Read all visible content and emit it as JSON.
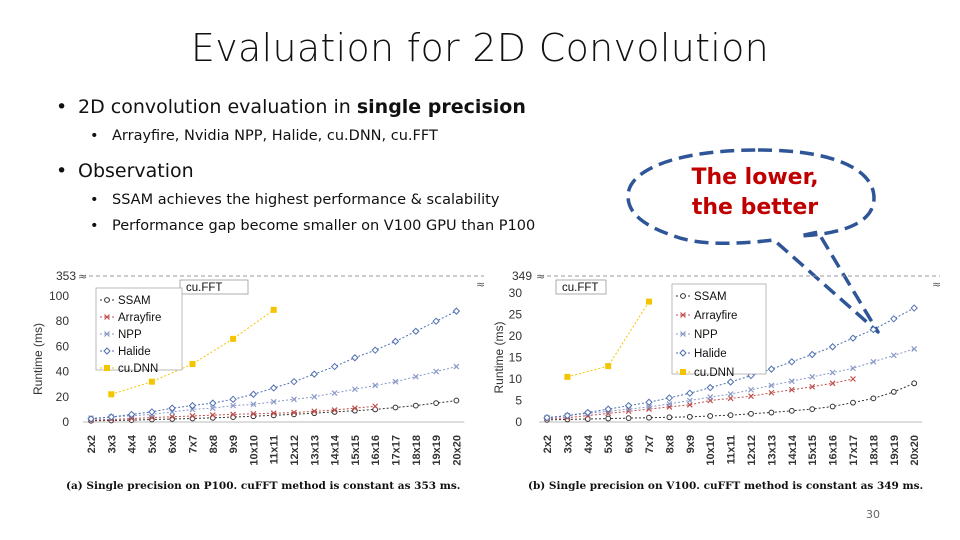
{
  "slide": {
    "title": "Evaluation for 2D Convolution",
    "bullet1_text": "2D convolution evaluation in ",
    "bullet1_bold": "single precision",
    "sub1": "Arrayfire, Nvidia NPP, Halide, cu.DNN, cu.FFT",
    "bullet2": "Observation",
    "sub2": "SSAM achieves the highest performance & scalability",
    "sub3": "Performance gap become smaller on V100 GPU than P100",
    "callout_line1": "The lower,",
    "callout_line2": "the better",
    "page_number": "30",
    "bullet_glyph": "•"
  },
  "colors": {
    "callout_border": "#2e5597",
    "callout_text": "#c00000",
    "ssam": "#333333",
    "arrayfire": "#c0504d",
    "npp": "#8a9ac8",
    "halide": "#4f6fb0",
    "cudnn": "#f5c400",
    "cufft_line": "#999999"
  },
  "chart_data": [
    {
      "type": "line",
      "caption": "(a) Single precision on P100. cuFFT method is constant as 353 ms.",
      "ylabel": "Runtime (ms)",
      "ylim": [
        0,
        100
      ],
      "yticks": [
        0,
        20,
        40,
        60,
        80,
        100
      ],
      "break_label": "353",
      "break_symbol": "≈",
      "categories": [
        "2x2",
        "3x3",
        "4x4",
        "5x5",
        "6x6",
        "7x7",
        "8x8",
        "9x9",
        "10x10",
        "11x11",
        "12x12",
        "13x13",
        "14x14",
        "15x15",
        "16x16",
        "17x17",
        "18x18",
        "19x19",
        "20x20"
      ],
      "reference_line": {
        "name": "cu.FFT",
        "value": 353
      },
      "legend_position": "upper-left",
      "series": [
        {
          "name": "SSAM",
          "key": "ssam",
          "marker": "circle",
          "values": [
            1,
            1.2,
            1.5,
            2,
            2.4,
            2.8,
            3.3,
            3.9,
            4.6,
            5.3,
            6.1,
            7,
            8,
            9,
            10,
            11.5,
            13,
            15,
            17
          ]
        },
        {
          "name": "Arrayfire",
          "key": "arrayfire",
          "marker": "x",
          "values": [
            1.5,
            2,
            2.8,
            3.5,
            4.2,
            4.8,
            5.5,
            6,
            6.5,
            7,
            7.5,
            8.5,
            9.5,
            11,
            12.5,
            null,
            null,
            null,
            null
          ]
        },
        {
          "name": "NPP",
          "key": "npp",
          "marker": "x",
          "values": [
            3,
            4,
            5,
            6,
            8,
            10,
            11,
            13,
            14,
            16,
            18,
            20,
            23,
            26,
            29,
            32,
            36,
            40,
            44
          ]
        },
        {
          "name": "Halide",
          "key": "halide",
          "marker": "diamond",
          "values": [
            2.5,
            4,
            6,
            8,
            11,
            13,
            15,
            18,
            22,
            27,
            32,
            38,
            44,
            51,
            57,
            64,
            72,
            80,
            88
          ]
        },
        {
          "name": "cu.DNN",
          "key": "cudnn",
          "marker": "square",
          "values": [
            null,
            22,
            null,
            32,
            null,
            46,
            null,
            66,
            null,
            89,
            null,
            null,
            null,
            null,
            null,
            null,
            null,
            null,
            null
          ]
        }
      ]
    },
    {
      "type": "line",
      "caption": "(b) Single precision on V100. cuFFT method is constant as 349 ms.",
      "ylabel": "Runtime (ms)",
      "ylim": [
        0,
        30
      ],
      "yticks": [
        0,
        5,
        10,
        15,
        20,
        25,
        30
      ],
      "break_label": "349",
      "break_symbol": "≈",
      "categories": [
        "2x2",
        "3x3",
        "4x4",
        "5x5",
        "6x6",
        "7x7",
        "8x8",
        "9x9",
        "10x10",
        "11x11",
        "12x12",
        "13x13",
        "14x14",
        "15x15",
        "16x16",
        "17x17",
        "18x18",
        "19x19",
        "20x20"
      ],
      "reference_line": {
        "name": "cu.FFT",
        "value": 349
      },
      "legend_position": "upper-right",
      "series": [
        {
          "name": "SSAM",
          "key": "ssam",
          "marker": "circle",
          "values": [
            0.5,
            0.6,
            0.7,
            0.8,
            0.9,
            1,
            1.1,
            1.2,
            1.4,
            1.6,
            1.9,
            2.2,
            2.6,
            3,
            3.6,
            4.5,
            5.5,
            7,
            9
          ]
        },
        {
          "name": "Arrayfire",
          "key": "arrayfire",
          "marker": "x",
          "values": [
            0.8,
            1,
            1.5,
            2,
            2.5,
            3,
            3.5,
            4,
            5,
            5.5,
            6,
            6.8,
            7.5,
            8.2,
            9,
            10,
            null,
            null,
            null
          ]
        },
        {
          "name": "NPP",
          "key": "npp",
          "marker": "x",
          "values": [
            1,
            1.5,
            2,
            2.5,
            3,
            3.5,
            4.2,
            5,
            5.8,
            6.5,
            7.5,
            8.5,
            9.5,
            10.5,
            11.5,
            12.5,
            14,
            15.5,
            17
          ]
        },
        {
          "name": "Halide",
          "key": "halide",
          "marker": "diamond",
          "values": [
            1,
            1.5,
            2.2,
            3,
            3.8,
            4.6,
            5.6,
            6.7,
            8,
            9.3,
            10.8,
            12.3,
            14,
            15.7,
            17.5,
            19.5,
            21.5,
            24,
            26.5
          ]
        },
        {
          "name": "cu.DNN",
          "key": "cudnn",
          "marker": "square",
          "values": [
            null,
            10.5,
            null,
            13,
            null,
            28,
            null,
            null,
            null,
            null,
            null,
            null,
            null,
            null,
            null,
            null,
            null,
            null,
            null
          ]
        }
      ]
    }
  ]
}
